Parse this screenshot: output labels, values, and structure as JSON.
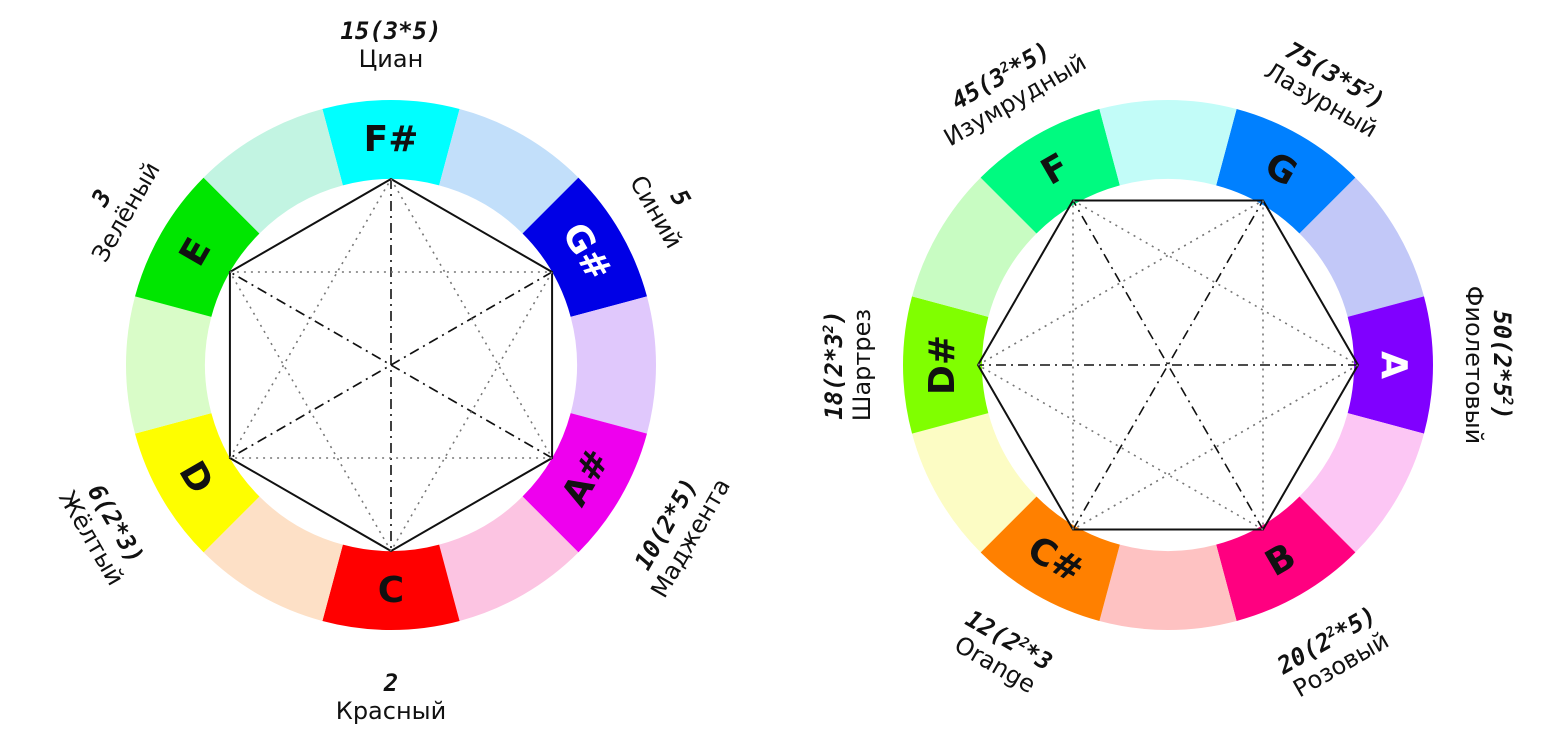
{
  "wheels": [
    {
      "id": "left",
      "segments": [
        {
          "note": "F#",
          "color": "#00ffff",
          "text": "dark",
          "num": "15(3*5)",
          "name": "Циан"
        },
        {
          "note": "",
          "color": "#c2dffa"
        },
        {
          "note": "G#",
          "color": "#0000e6",
          "text": "light",
          "num": "5",
          "name": "Синий"
        },
        {
          "note": "",
          "color": "#e0c8fc"
        },
        {
          "note": "A#",
          "color": "#ee00ee",
          "text": "dark",
          "num": "10(2*5)",
          "name": "Маджента"
        },
        {
          "note": "",
          "color": "#fcc4e2"
        },
        {
          "note": "C",
          "color": "#ff0000",
          "text": "dark",
          "num": "2",
          "name": "Красный"
        },
        {
          "note": "",
          "color": "#fde0c6"
        },
        {
          "note": "D",
          "color": "#fefe00",
          "text": "dark",
          "num": "6(2*3)",
          "name": "Жёлтый"
        },
        {
          "note": "",
          "color": "#d9fcc8"
        },
        {
          "note": "E",
          "color": "#00e600",
          "text": "dark",
          "num": "3",
          "name": "Зелёный"
        },
        {
          "note": "",
          "color": "#c2f4e2"
        }
      ]
    },
    {
      "id": "right",
      "segments": [
        {
          "note": "G",
          "color": "#0080ff",
          "text": "dark",
          "num": [
            "75(3*5",
            "2",
            ")"
          ],
          "name": "Лазурный"
        },
        {
          "note": "",
          "color": "#c2c8f8"
        },
        {
          "note": "A",
          "color": "#8000ff",
          "text": "light",
          "num": [
            "50(2*5",
            "2",
            ")"
          ],
          "name": "Фиолетовый"
        },
        {
          "note": "",
          "color": "#fcc6f4"
        },
        {
          "note": "B",
          "color": "#ff0080",
          "text": "dark",
          "num": [
            "20(2",
            "2",
            "*5)"
          ],
          "name": "Розовый"
        },
        {
          "note": "",
          "color": "#fec2c2"
        },
        {
          "note": "C#",
          "color": "#ff8000",
          "text": "dark",
          "num": [
            "12(2",
            "2",
            "*3"
          ],
          "name": "Orange"
        },
        {
          "note": "",
          "color": "#fcfcc4"
        },
        {
          "note": "D#",
          "color": "#80ff00",
          "text": "dark",
          "num": [
            "18(2*3",
            "2",
            ")"
          ],
          "name": "Шартрез"
        },
        {
          "note": "",
          "color": "#c8fcc2"
        },
        {
          "note": "F",
          "color": "#00fa80",
          "text": "dark",
          "num": [
            "45(3",
            "2",
            "*5)"
          ],
          "name": "Изумрудный"
        },
        {
          "note": "",
          "color": "#c2fcf8"
        }
      ]
    }
  ]
}
